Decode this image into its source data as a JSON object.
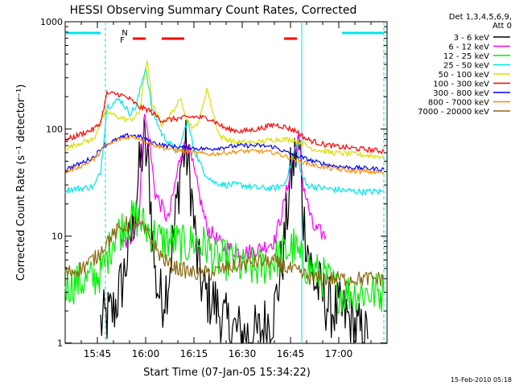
{
  "chart_data": {
    "type": "line",
    "title": "HESSI Observing Summary Count Rates, Corrected",
    "xlabel": "Start Time (07-Jan-05 15:34:22)",
    "ylabel": "Corrected Count Rate (s⁻¹ detector⁻¹)",
    "footer": "15-Feb-2010 05:18",
    "yscale": "log",
    "ylim": [
      1,
      1000
    ],
    "xlim_min": [
      35,
      135
    ],
    "y_ticks": [
      {
        "v": 1,
        "label": "1"
      },
      {
        "v": 10,
        "label": "10"
      },
      {
        "v": 100,
        "label": "100"
      },
      {
        "v": 1000,
        "label": "1000"
      }
    ],
    "x_ticks": [
      {
        "m": 45,
        "label": "15:45"
      },
      {
        "m": 60,
        "label": "16:00"
      },
      {
        "m": 75,
        "label": "16:15"
      },
      {
        "m": 90,
        "label": "16:30"
      },
      {
        "m": 105,
        "label": "16:45"
      },
      {
        "m": 120,
        "label": "17:00"
      }
    ],
    "legend_header": [
      "Det 1,3,4,5,6,9,",
      "Att 0"
    ],
    "flag_labels": {
      "N": "N",
      "F": "F"
    },
    "flag_colors": {
      "N": "#00e5e5",
      "F": "#ff0000"
    },
    "night_bars": [
      [
        35,
        46
      ],
      [
        121,
        134
      ]
    ],
    "flare_bars": [
      [
        56,
        60
      ],
      [
        65,
        72
      ],
      [
        103,
        107
      ]
    ],
    "vlines": [
      {
        "m": 47.5,
        "style": "dashed",
        "color": "#00e5e5"
      },
      {
        "m": 108.5,
        "style": "solid",
        "color": "#00e5e5"
      },
      {
        "m": 134,
        "style": "dashed",
        "color": "#00e5e5"
      }
    ],
    "series": [
      {
        "name": "3 - 6 keV",
        "color": "#000000",
        "noise": 0.6,
        "points": [
          [
            46,
            1.5
          ],
          [
            50,
            2
          ],
          [
            53,
            4
          ],
          [
            56,
            12
          ],
          [
            58,
            40
          ],
          [
            59.5,
            75
          ],
          [
            61,
            40
          ],
          [
            63,
            4
          ],
          [
            65,
            2.5
          ],
          [
            67,
            4
          ],
          [
            69,
            12
          ],
          [
            71,
            50
          ],
          [
            72.5,
            65
          ],
          [
            74,
            30
          ],
          [
            76,
            6
          ],
          [
            78,
            3
          ],
          [
            81,
            2.5
          ],
          [
            85,
            1.5
          ],
          [
            90,
            1.2
          ],
          [
            95,
            1.2
          ],
          [
            100,
            2
          ],
          [
            103,
            8
          ],
          [
            105,
            35
          ],
          [
            107,
            65
          ],
          [
            108,
            60
          ],
          [
            109,
            15
          ],
          [
            112,
            4
          ],
          [
            117,
            2.2
          ],
          [
            122,
            1.8
          ],
          [
            126,
            1.3
          ],
          [
            129,
            1.1
          ]
        ]
      },
      {
        "name": "6 - 12 keV",
        "color": "#ff00ff",
        "noise": 0.15,
        "points": [
          [
            52,
            8
          ],
          [
            55,
            9
          ],
          [
            58,
            15
          ],
          [
            59.5,
            140
          ],
          [
            61,
            80
          ],
          [
            63,
            25
          ],
          [
            67,
            14
          ],
          [
            71,
            60
          ],
          [
            73,
            75
          ],
          [
            75,
            40
          ],
          [
            79,
            12
          ],
          [
            84,
            8
          ],
          [
            90,
            7
          ],
          [
            95,
            7.5
          ],
          [
            100,
            9
          ],
          [
            103,
            20
          ],
          [
            106,
            60
          ],
          [
            107.5,
            80
          ],
          [
            109,
            30
          ],
          [
            112,
            12
          ],
          [
            116,
            10
          ]
        ]
      },
      {
        "name": "12 - 25 keV",
        "color": "#00ee00",
        "noise": 0.4,
        "points": [
          [
            35,
            3.5
          ],
          [
            44,
            4
          ],
          [
            47,
            5
          ],
          [
            50,
            10
          ],
          [
            54,
            13
          ],
          [
            57,
            15
          ],
          [
            60,
            12
          ],
          [
            65,
            9
          ],
          [
            69,
            9
          ],
          [
            72,
            8
          ],
          [
            75,
            9
          ],
          [
            79,
            8
          ],
          [
            82,
            6
          ],
          [
            87,
            6
          ],
          [
            90,
            5
          ],
          [
            95,
            5
          ],
          [
            100,
            6
          ],
          [
            103,
            7
          ],
          [
            106,
            8
          ],
          [
            108,
            6
          ],
          [
            111,
            5
          ],
          [
            116,
            4
          ],
          [
            120,
            3
          ],
          [
            125,
            3
          ],
          [
            130,
            3
          ],
          [
            134,
            3
          ]
        ]
      },
      {
        "name": "25 - 50 keV",
        "color": "#00e5e5",
        "noise": 0.06,
        "points": [
          [
            35,
            27
          ],
          [
            40,
            28
          ],
          [
            44,
            29
          ],
          [
            46,
            40
          ],
          [
            48,
            160
          ],
          [
            52,
            190
          ],
          [
            55,
            140
          ],
          [
            57,
            160
          ],
          [
            60,
            380
          ],
          [
            62,
            150
          ],
          [
            65,
            90
          ],
          [
            68,
            70
          ],
          [
            70,
            60
          ],
          [
            73,
            120
          ],
          [
            75,
            65
          ],
          [
            78,
            40
          ],
          [
            81,
            32
          ],
          [
            85,
            30
          ],
          [
            90,
            30
          ],
          [
            95,
            28
          ],
          [
            100,
            28
          ],
          [
            103,
            30
          ],
          [
            105,
            45
          ],
          [
            107,
            75
          ],
          [
            108,
            40
          ],
          [
            110,
            30
          ],
          [
            115,
            28
          ],
          [
            120,
            27
          ],
          [
            126,
            26
          ],
          [
            134,
            26
          ]
        ]
      },
      {
        "name": "50 - 100 keV",
        "color": "#dddd00",
        "noise": 0.05,
        "points": [
          [
            35,
            65
          ],
          [
            40,
            75
          ],
          [
            44,
            80
          ],
          [
            46,
            120
          ],
          [
            48,
            145
          ],
          [
            51,
            130
          ],
          [
            55,
            120
          ],
          [
            58,
            140
          ],
          [
            60.5,
            450
          ],
          [
            62,
            170
          ],
          [
            65,
            110
          ],
          [
            68,
            140
          ],
          [
            71,
            190
          ],
          [
            73,
            120
          ],
          [
            75,
            100
          ],
          [
            77,
            130
          ],
          [
            79,
            240
          ],
          [
            81,
            140
          ],
          [
            83,
            85
          ],
          [
            88,
            75
          ],
          [
            95,
            75
          ],
          [
            100,
            80
          ],
          [
            105,
            80
          ],
          [
            108,
            75
          ],
          [
            112,
            65
          ],
          [
            118,
            60
          ],
          [
            125,
            58
          ],
          [
            134,
            55
          ]
        ]
      },
      {
        "name": "100 - 300 keV",
        "color": "#ff0000",
        "noise": 0.05,
        "points": [
          [
            35,
            78
          ],
          [
            40,
            90
          ],
          [
            44,
            100
          ],
          [
            46,
            115
          ],
          [
            48,
            215
          ],
          [
            52,
            210
          ],
          [
            55,
            190
          ],
          [
            58,
            160
          ],
          [
            61,
            150
          ],
          [
            65,
            120
          ],
          [
            70,
            125
          ],
          [
            75,
            130
          ],
          [
            80,
            125
          ],
          [
            85,
            100
          ],
          [
            90,
            95
          ],
          [
            95,
            100
          ],
          [
            100,
            110
          ],
          [
            103,
            105
          ],
          [
            107,
            95
          ],
          [
            110,
            80
          ],
          [
            115,
            72
          ],
          [
            120,
            68
          ],
          [
            127,
            65
          ],
          [
            134,
            62
          ]
        ]
      },
      {
        "name": "300 - 800 keV",
        "color": "#0000ee",
        "noise": 0.04,
        "points": [
          [
            35,
            42
          ],
          [
            40,
            48
          ],
          [
            44,
            55
          ],
          [
            47,
            70
          ],
          [
            52,
            82
          ],
          [
            55,
            88
          ],
          [
            58,
            85
          ],
          [
            62,
            75
          ],
          [
            66,
            70
          ],
          [
            70,
            68
          ],
          [
            75,
            66
          ],
          [
            80,
            65
          ],
          [
            85,
            68
          ],
          [
            90,
            70
          ],
          [
            95,
            70
          ],
          [
            100,
            68
          ],
          [
            104,
            60
          ],
          [
            108,
            55
          ],
          [
            112,
            50
          ],
          [
            117,
            46
          ],
          [
            122,
            44
          ],
          [
            128,
            43
          ],
          [
            134,
            42
          ]
        ]
      },
      {
        "name": "800 - 7000 keV",
        "color": "#ff8c00",
        "noise": 0.04,
        "points": [
          [
            35,
            40
          ],
          [
            40,
            45
          ],
          [
            44,
            52
          ],
          [
            47,
            68
          ],
          [
            52,
            80
          ],
          [
            55,
            85
          ],
          [
            58,
            82
          ],
          [
            62,
            72
          ],
          [
            66,
            66
          ],
          [
            70,
            63
          ],
          [
            75,
            60
          ],
          [
            80,
            58
          ],
          [
            85,
            60
          ],
          [
            90,
            62
          ],
          [
            95,
            62
          ],
          [
            100,
            60
          ],
          [
            104,
            55
          ],
          [
            108,
            50
          ],
          [
            112,
            46
          ],
          [
            117,
            43
          ],
          [
            122,
            41
          ],
          [
            128,
            40
          ],
          [
            134,
            39
          ]
        ]
      },
      {
        "name": "7000 - 20000 keV",
        "color": "#8b6914",
        "noise": 0.15,
        "points": [
          [
            35,
            4.5
          ],
          [
            40,
            5
          ],
          [
            45,
            6.5
          ],
          [
            48,
            9
          ],
          [
            51,
            11
          ],
          [
            54,
            13
          ],
          [
            56,
            14
          ],
          [
            58,
            13
          ],
          [
            61,
            10
          ],
          [
            64,
            7
          ],
          [
            67,
            5.5
          ],
          [
            70,
            5
          ],
          [
            75,
            4.5
          ],
          [
            80,
            4.5
          ],
          [
            85,
            5
          ],
          [
            90,
            5.5
          ],
          [
            95,
            5.8
          ],
          [
            100,
            5.8
          ],
          [
            104,
            5
          ],
          [
            108,
            4.5
          ],
          [
            112,
            4
          ],
          [
            118,
            4
          ],
          [
            125,
            4
          ],
          [
            134,
            4
          ]
        ]
      }
    ]
  }
}
